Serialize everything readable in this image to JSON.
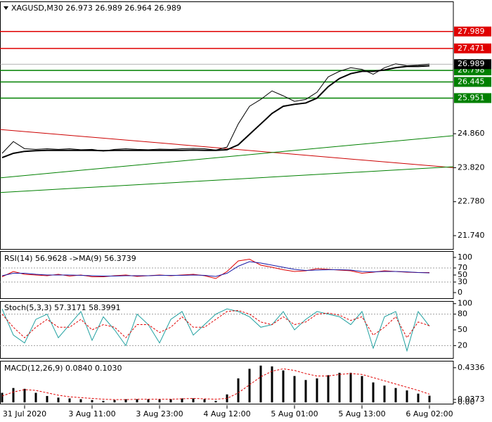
{
  "chart_data": [
    {
      "type": "line",
      "title": "XAGUSD,M30  26.973 26.989 26.964 26.989",
      "categories": [
        null,
        null,
        "31 Jul 2020",
        null,
        null,
        null,
        null,
        null,
        "3 Aug 11:00",
        null,
        null,
        null,
        null,
        null,
        "3 Aug 23:00",
        null,
        null,
        null,
        null,
        null,
        "4 Aug 12:00",
        null,
        null,
        null,
        null,
        null,
        "5 Aug 01:00",
        null,
        null,
        null,
        null,
        null,
        "5 Aug 13:00",
        null,
        null,
        null,
        null,
        null,
        "6 Aug 02:00"
      ],
      "series": [
        {
          "color": "#000000",
          "line_width": 1,
          "values": [
            24.26,
            24.62,
            24.4,
            24.38,
            24.4,
            24.38,
            24.4,
            24.37,
            24.38,
            24.33,
            24.38,
            24.4,
            24.38,
            24.37,
            24.39,
            24.38,
            24.4,
            24.41,
            24.4,
            24.36,
            24.45,
            25.16,
            25.7,
            25.91,
            26.17,
            26.02,
            25.85,
            25.91,
            26.13,
            26.6,
            26.77,
            26.88,
            26.83,
            26.68,
            26.88,
            27.0,
            26.94,
            26.96,
            26.99
          ]
        },
        {
          "color": "#000000",
          "line_width": 2,
          "values": [
            24.13,
            24.26,
            24.32,
            24.34,
            24.35,
            24.35,
            24.35,
            24.35,
            24.35,
            24.34,
            24.35,
            24.35,
            24.35,
            24.35,
            24.35,
            24.35,
            24.35,
            24.36,
            24.35,
            24.35,
            24.37,
            24.52,
            24.84,
            25.16,
            25.48,
            25.7,
            25.76,
            25.8,
            25.95,
            26.3,
            26.55,
            26.7,
            26.77,
            26.77,
            26.81,
            26.88,
            26.92,
            26.92,
            26.94
          ]
        }
      ],
      "ylim": [
        21.31,
        28.91
      ],
      "yticks": [
        {
          "value": 24.86,
          "label": "24.860"
        },
        {
          "value": 23.82,
          "label": "23.820"
        },
        {
          "value": 22.78,
          "label": "22.780"
        },
        {
          "value": 21.74,
          "label": "21.740"
        }
      ],
      "level_style": "box",
      "levels": [
        {
          "value": 27.989,
          "color": "#e00000"
        },
        {
          "value": 27.471,
          "color": "#e00000"
        },
        {
          "value": 26.798,
          "color": "#008000"
        },
        {
          "value": 26.445,
          "color": "#008000"
        },
        {
          "value": 25.951,
          "color": "#008000"
        }
      ],
      "last_price": {
        "value": 26.989,
        "color": "#000000"
      },
      "trendlines": [
        {
          "color": "#cc0000",
          "values": [
            24.99,
            23.82
          ]
        },
        {
          "color": "#008000",
          "values": [
            23.51,
            24.8
          ]
        },
        {
          "color": "#008000",
          "values": [
            23.06,
            23.85
          ]
        }
      ]
    },
    {
      "type": "line",
      "title": "RSI(14) 56.9628 ->MA(9) 56.3739",
      "series": [
        {
          "color": "#e00000",
          "line_width": 1,
          "values": [
            45,
            60,
            52,
            50,
            48,
            52,
            47,
            50,
            45,
            45,
            48,
            50,
            46,
            48,
            50,
            48,
            50,
            52,
            48,
            40,
            60,
            90,
            95,
            78,
            72,
            65,
            60,
            62,
            68,
            66,
            64,
            62,
            55,
            58,
            62,
            60,
            58,
            57,
            57
          ]
        },
        {
          "color": "#1a1aa6",
          "line_width": 1,
          "values": [
            48,
            55,
            55,
            52,
            50,
            50,
            50,
            49,
            48,
            47,
            47,
            48,
            48,
            48,
            49,
            49,
            49,
            50,
            49,
            46,
            55,
            75,
            88,
            84,
            78,
            72,
            66,
            63,
            64,
            65,
            65,
            64,
            60,
            59,
            60,
            60,
            59,
            57,
            56
          ]
        }
      ],
      "ylim": [
        -18,
        118
      ],
      "yticks": [
        100,
        70,
        50,
        30,
        0
      ],
      "level_style": "dotted",
      "levels": [
        {
          "value": 70,
          "color": "#a0a0a0"
        },
        {
          "value": 30,
          "color": "#a0a0a0"
        }
      ]
    },
    {
      "type": "line",
      "title": "Stoch(5,3,3) 57.3171 58.3991",
      "series": [
        {
          "color": "#20a0a0",
          "line_width": 1,
          "values": [
            90,
            40,
            25,
            70,
            80,
            35,
            60,
            85,
            30,
            75,
            50,
            20,
            80,
            60,
            25,
            70,
            85,
            40,
            60,
            80,
            90,
            85,
            75,
            55,
            60,
            85,
            50,
            70,
            85,
            80,
            75,
            60,
            85,
            15,
            75,
            85,
            10,
            85,
            57
          ]
        },
        {
          "color": "#e00000",
          "line_width": 1,
          "dash": true,
          "values": [
            80,
            55,
            35,
            55,
            70,
            55,
            55,
            70,
            50,
            60,
            55,
            35,
            60,
            60,
            45,
            55,
            75,
            55,
            55,
            70,
            85,
            87,
            80,
            65,
            60,
            75,
            60,
            65,
            80,
            82,
            78,
            68,
            75,
            40,
            55,
            75,
            35,
            65,
            58
          ]
        }
      ],
      "ylim": [
        -5,
        105
      ],
      "yticks": [
        100,
        80,
        50,
        20
      ],
      "level_style": "dotted",
      "levels": [
        {
          "value": 80,
          "color": "#a0a0a0"
        },
        {
          "value": 20,
          "color": "#a0a0a0"
        }
      ]
    },
    {
      "type": "bar",
      "title": "MACD(12,26,9) 0.0840 0.1030",
      "series": [
        {
          "color": "#000000",
          "kind": "bar",
          "values": [
            0.12,
            0.18,
            0.17,
            0.12,
            0.08,
            0.06,
            0.05,
            0.04,
            0.03,
            0.02,
            0.03,
            0.04,
            0.04,
            0.04,
            0.04,
            0.04,
            0.05,
            0.05,
            0.04,
            0.02,
            0.1,
            0.3,
            0.42,
            0.46,
            0.45,
            0.4,
            0.33,
            0.28,
            0.3,
            0.34,
            0.37,
            0.37,
            0.33,
            0.25,
            0.21,
            0.18,
            0.15,
            0.11,
            0.084
          ]
        },
        {
          "color": "#e00000",
          "line_width": 1,
          "dash": true,
          "values": [
            0.08,
            0.13,
            0.16,
            0.15,
            0.12,
            0.09,
            0.07,
            0.06,
            0.05,
            0.04,
            0.035,
            0.035,
            0.04,
            0.04,
            0.04,
            0.04,
            0.045,
            0.05,
            0.045,
            0.04,
            0.05,
            0.12,
            0.22,
            0.32,
            0.39,
            0.42,
            0.4,
            0.36,
            0.33,
            0.33,
            0.35,
            0.36,
            0.35,
            0.31,
            0.27,
            0.23,
            0.19,
            0.15,
            0.103
          ]
        }
      ],
      "ylim": [
        -0.025,
        0.52
      ],
      "yticks": [
        0.4336,
        {
          "value": 0,
          "label": "0.00"
        },
        0.0373
      ]
    }
  ]
}
